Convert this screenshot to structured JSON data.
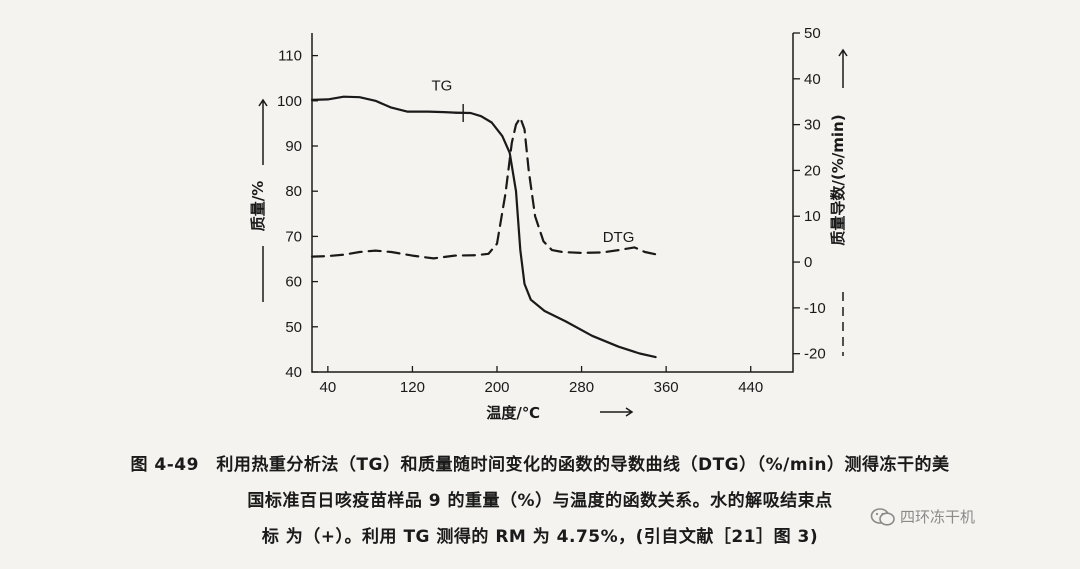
{
  "chart_data": {
    "type": "line",
    "xlabel": "温度/℃",
    "ylabel_left": "质量/%",
    "ylabel_right": "质量导数/(%/min)",
    "xlim": [
      25,
      480
    ],
    "ylim_left": [
      40,
      115
    ],
    "ylim_right": [
      -24,
      50
    ],
    "x_ticks": [
      40,
      120,
      200,
      280,
      360,
      440
    ],
    "y_left_ticks": [
      40,
      50,
      60,
      70,
      80,
      90,
      100,
      110
    ],
    "y_right_ticks": [
      -20,
      -10,
      0,
      10,
      20,
      30,
      40,
      50
    ],
    "grid": false,
    "series": [
      {
        "name": "TG",
        "axis": "left",
        "style": "solid",
        "x": [
          25,
          40,
          55,
          70,
          85,
          100,
          115,
          135,
          150,
          160
        ],
        "y": [
          100.2,
          100.3,
          100.9,
          100.8,
          100.0,
          98.5,
          97.6,
          97.6,
          97.5,
          97.4
        ]
      },
      {
        "name": "TG",
        "axis": "left",
        "style": "solid",
        "x": [
          160,
          175,
          185,
          195,
          205,
          212,
          218,
          222,
          226,
          232,
          245,
          265,
          290,
          315,
          335,
          350
        ],
        "y": [
          97.4,
          97.3,
          96.6,
          95.2,
          92.2,
          88.5,
          80.0,
          67.0,
          59.5,
          56.0,
          53.5,
          51.2,
          48.0,
          45.6,
          44.1,
          43.3
        ]
      },
      {
        "name": "DTG",
        "axis": "right",
        "style": "dashed",
        "x": [
          25,
          40,
          55,
          70,
          85,
          100,
          120,
          140,
          160,
          180,
          192,
          200,
          208,
          214,
          218,
          222,
          226,
          230,
          236,
          244,
          252,
          262,
          280,
          300,
          315,
          330,
          340,
          350
        ],
        "y": [
          1.2,
          1.3,
          1.6,
          2.2,
          2.5,
          2.2,
          1.4,
          0.8,
          1.4,
          1.5,
          1.8,
          4.0,
          15.0,
          26.0,
          30.0,
          31.5,
          29.0,
          20.0,
          10.0,
          4.5,
          2.6,
          2.2,
          2.0,
          2.1,
          2.6,
          3.2,
          2.2,
          1.7
        ]
      }
    ],
    "annotations": [
      {
        "text": "TG",
        "series": "TG"
      },
      {
        "text": "DTG",
        "series": "DTG"
      },
      {
        "marker": "+",
        "x": 168,
        "y": 97.3
      }
    ]
  },
  "caption": {
    "line1": "图 4-49　利用热重分析法（TG）和质量随时间变化的函数的导数曲线（DTG）（%/min）测得冻干的美",
    "line2": "国标准百日咳疫苗样品 9 的重量（%）与温度的函数关系。水的解吸结束点",
    "line3": "标 为（+）。利用 TG 测得的 RM 为 4.75%，(引自文献［21］图 3)"
  },
  "watermark": {
    "text": "四环冻干机",
    "icon": "wechat-icon"
  }
}
